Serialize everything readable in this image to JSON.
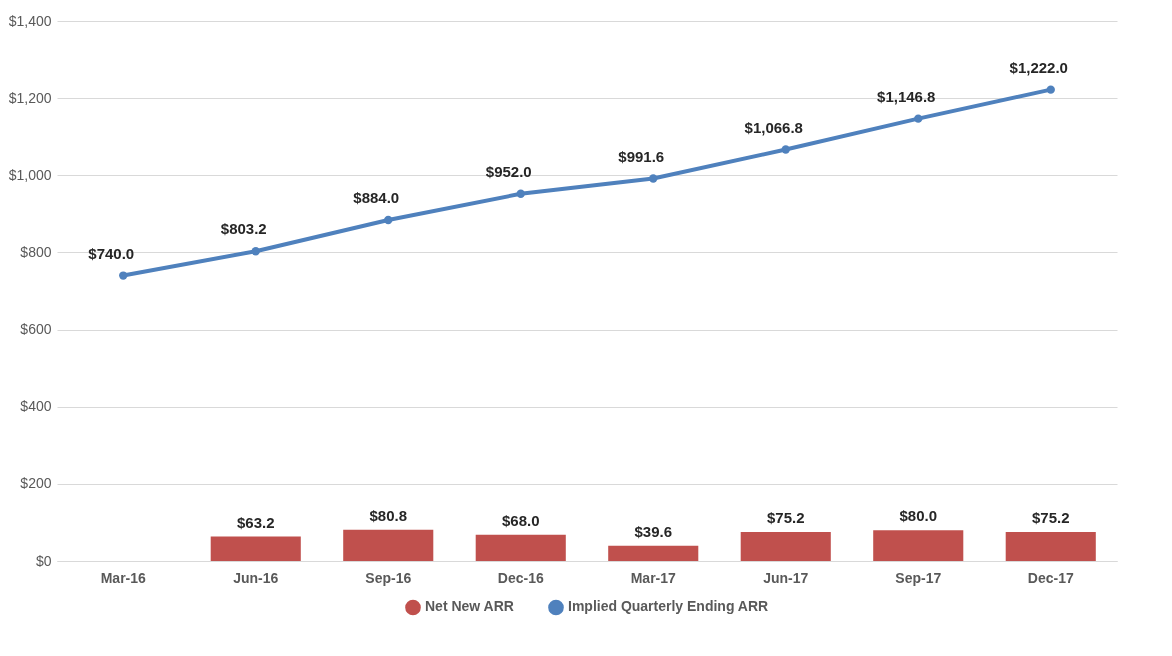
{
  "chart_data": {
    "type": "bar",
    "categories": [
      "Mar-16",
      "Jun-16",
      "Sep-16",
      "Dec-16",
      "Mar-17",
      "Jun-17",
      "Sep-17",
      "Dec-17"
    ],
    "series": [
      {
        "name": "Net New ARR",
        "color": "#c0504d",
        "values": [
          null,
          63.2,
          80.8,
          68.0,
          39.6,
          75.2,
          80.0,
          75.2
        ],
        "value_labels": [
          null,
          "$63.2",
          "$80.8",
          "$68.0",
          "$39.6",
          "$75.2",
          "$80.0",
          "$75.2"
        ]
      },
      {
        "name": "Implied Quarterly Ending ARR",
        "type": "line",
        "color": "#4f81bd",
        "values": [
          740.0,
          803.2,
          884.0,
          952.0,
          991.6,
          1066.8,
          1146.8,
          1222.0
        ],
        "value_labels": [
          "$740.0",
          "$803.2",
          "$884.0",
          "$952.0",
          "$991.6",
          "$1,066.8",
          "$1,146.8",
          "$1,222.0"
        ]
      }
    ],
    "ylim": [
      0,
      1400
    ],
    "yticks": [
      {
        "value": 0,
        "label": "$0"
      },
      {
        "value": 200,
        "label": "$200"
      },
      {
        "value": 400,
        "label": "$400"
      },
      {
        "value": 600,
        "label": "$600"
      },
      {
        "value": 800,
        "label": "$800"
      },
      {
        "value": 1000,
        "label": "$1,000"
      },
      {
        "value": 1200,
        "label": "$1,200"
      },
      {
        "value": 1400,
        "label": "$1,400"
      }
    ],
    "grid": "y",
    "legend": "bottom",
    "marker": "circle",
    "line_style": "solid"
  }
}
